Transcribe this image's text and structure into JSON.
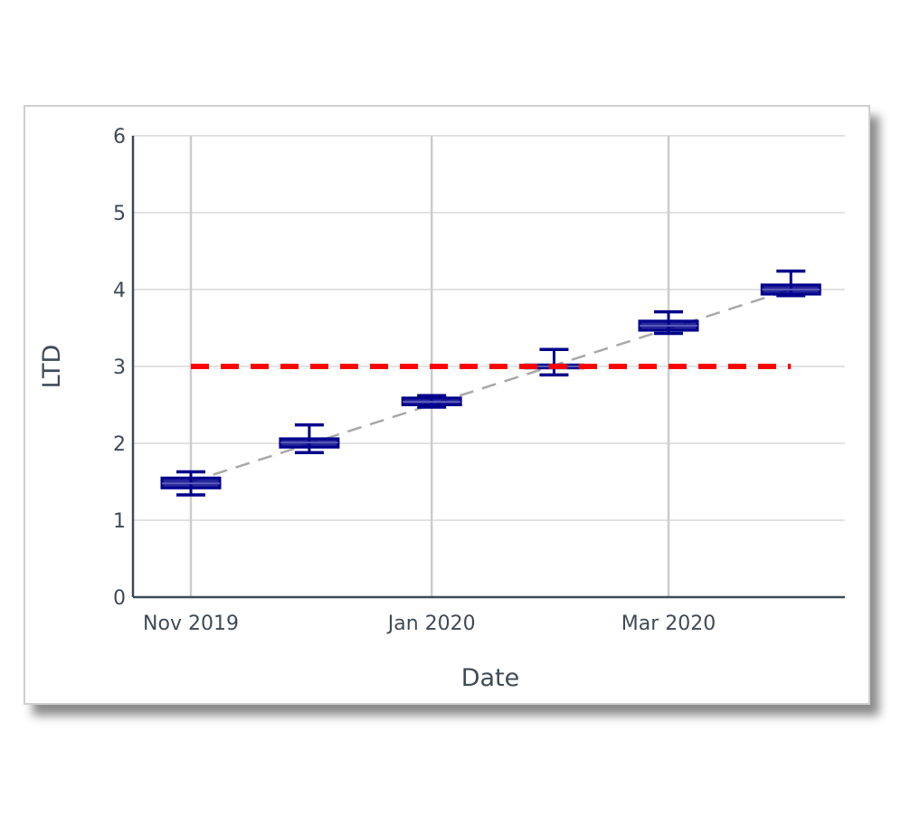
{
  "chart_data": {
    "type": "box",
    "xlabel": "Date",
    "ylabel": "LTD",
    "ylim": [
      0,
      6
    ],
    "yticks": [
      0,
      1,
      2,
      3,
      4,
      5,
      6
    ],
    "xlim": [
      "2019-10-01",
      "2020-04-20"
    ],
    "xticks": [
      {
        "label": "Nov 2019",
        "date": "2019-11-01"
      },
      {
        "label": "Jan 2020",
        "date": "2020-01-01"
      },
      {
        "label": "Mar 2020",
        "date": "2020-03-01"
      }
    ],
    "grid": true,
    "boxes": [
      {
        "date": "2019-11-01",
        "whisker_low": 1.33,
        "q1": 1.42,
        "median": 1.48,
        "q3": 1.55,
        "whisker_high": 1.63
      },
      {
        "date": "2019-12-01",
        "whisker_low": 1.88,
        "q1": 1.95,
        "median": 2.01,
        "q3": 2.06,
        "whisker_high": 2.24
      },
      {
        "date": "2020-01-01",
        "whisker_low": 2.47,
        "q1": 2.5,
        "median": 2.54,
        "q3": 2.59,
        "whisker_high": 2.62
      },
      {
        "date": "2020-02-01",
        "whisker_low": 2.89,
        "q1": 2.98,
        "median": 3.0,
        "q3": 3.02,
        "whisker_high": 3.22
      },
      {
        "date": "2020-03-01",
        "whisker_low": 3.43,
        "q1": 3.47,
        "median": 3.53,
        "q3": 3.59,
        "whisker_high": 3.71
      },
      {
        "date": "2020-04-01",
        "whisker_low": 3.92,
        "q1": 3.94,
        "median": 4.0,
        "q3": 4.06,
        "whisker_high": 4.24
      }
    ],
    "trend_line": {
      "from": {
        "date": "2019-11-01",
        "value": 1.5
      },
      "to": {
        "date": "2020-04-01",
        "value": 4.0
      },
      "color": "#a8a8a8"
    },
    "reference_line": {
      "value": 3,
      "from": "2019-11-01",
      "to": "2020-04-01",
      "color": "#ff0000"
    },
    "box_color": "#00008b"
  }
}
